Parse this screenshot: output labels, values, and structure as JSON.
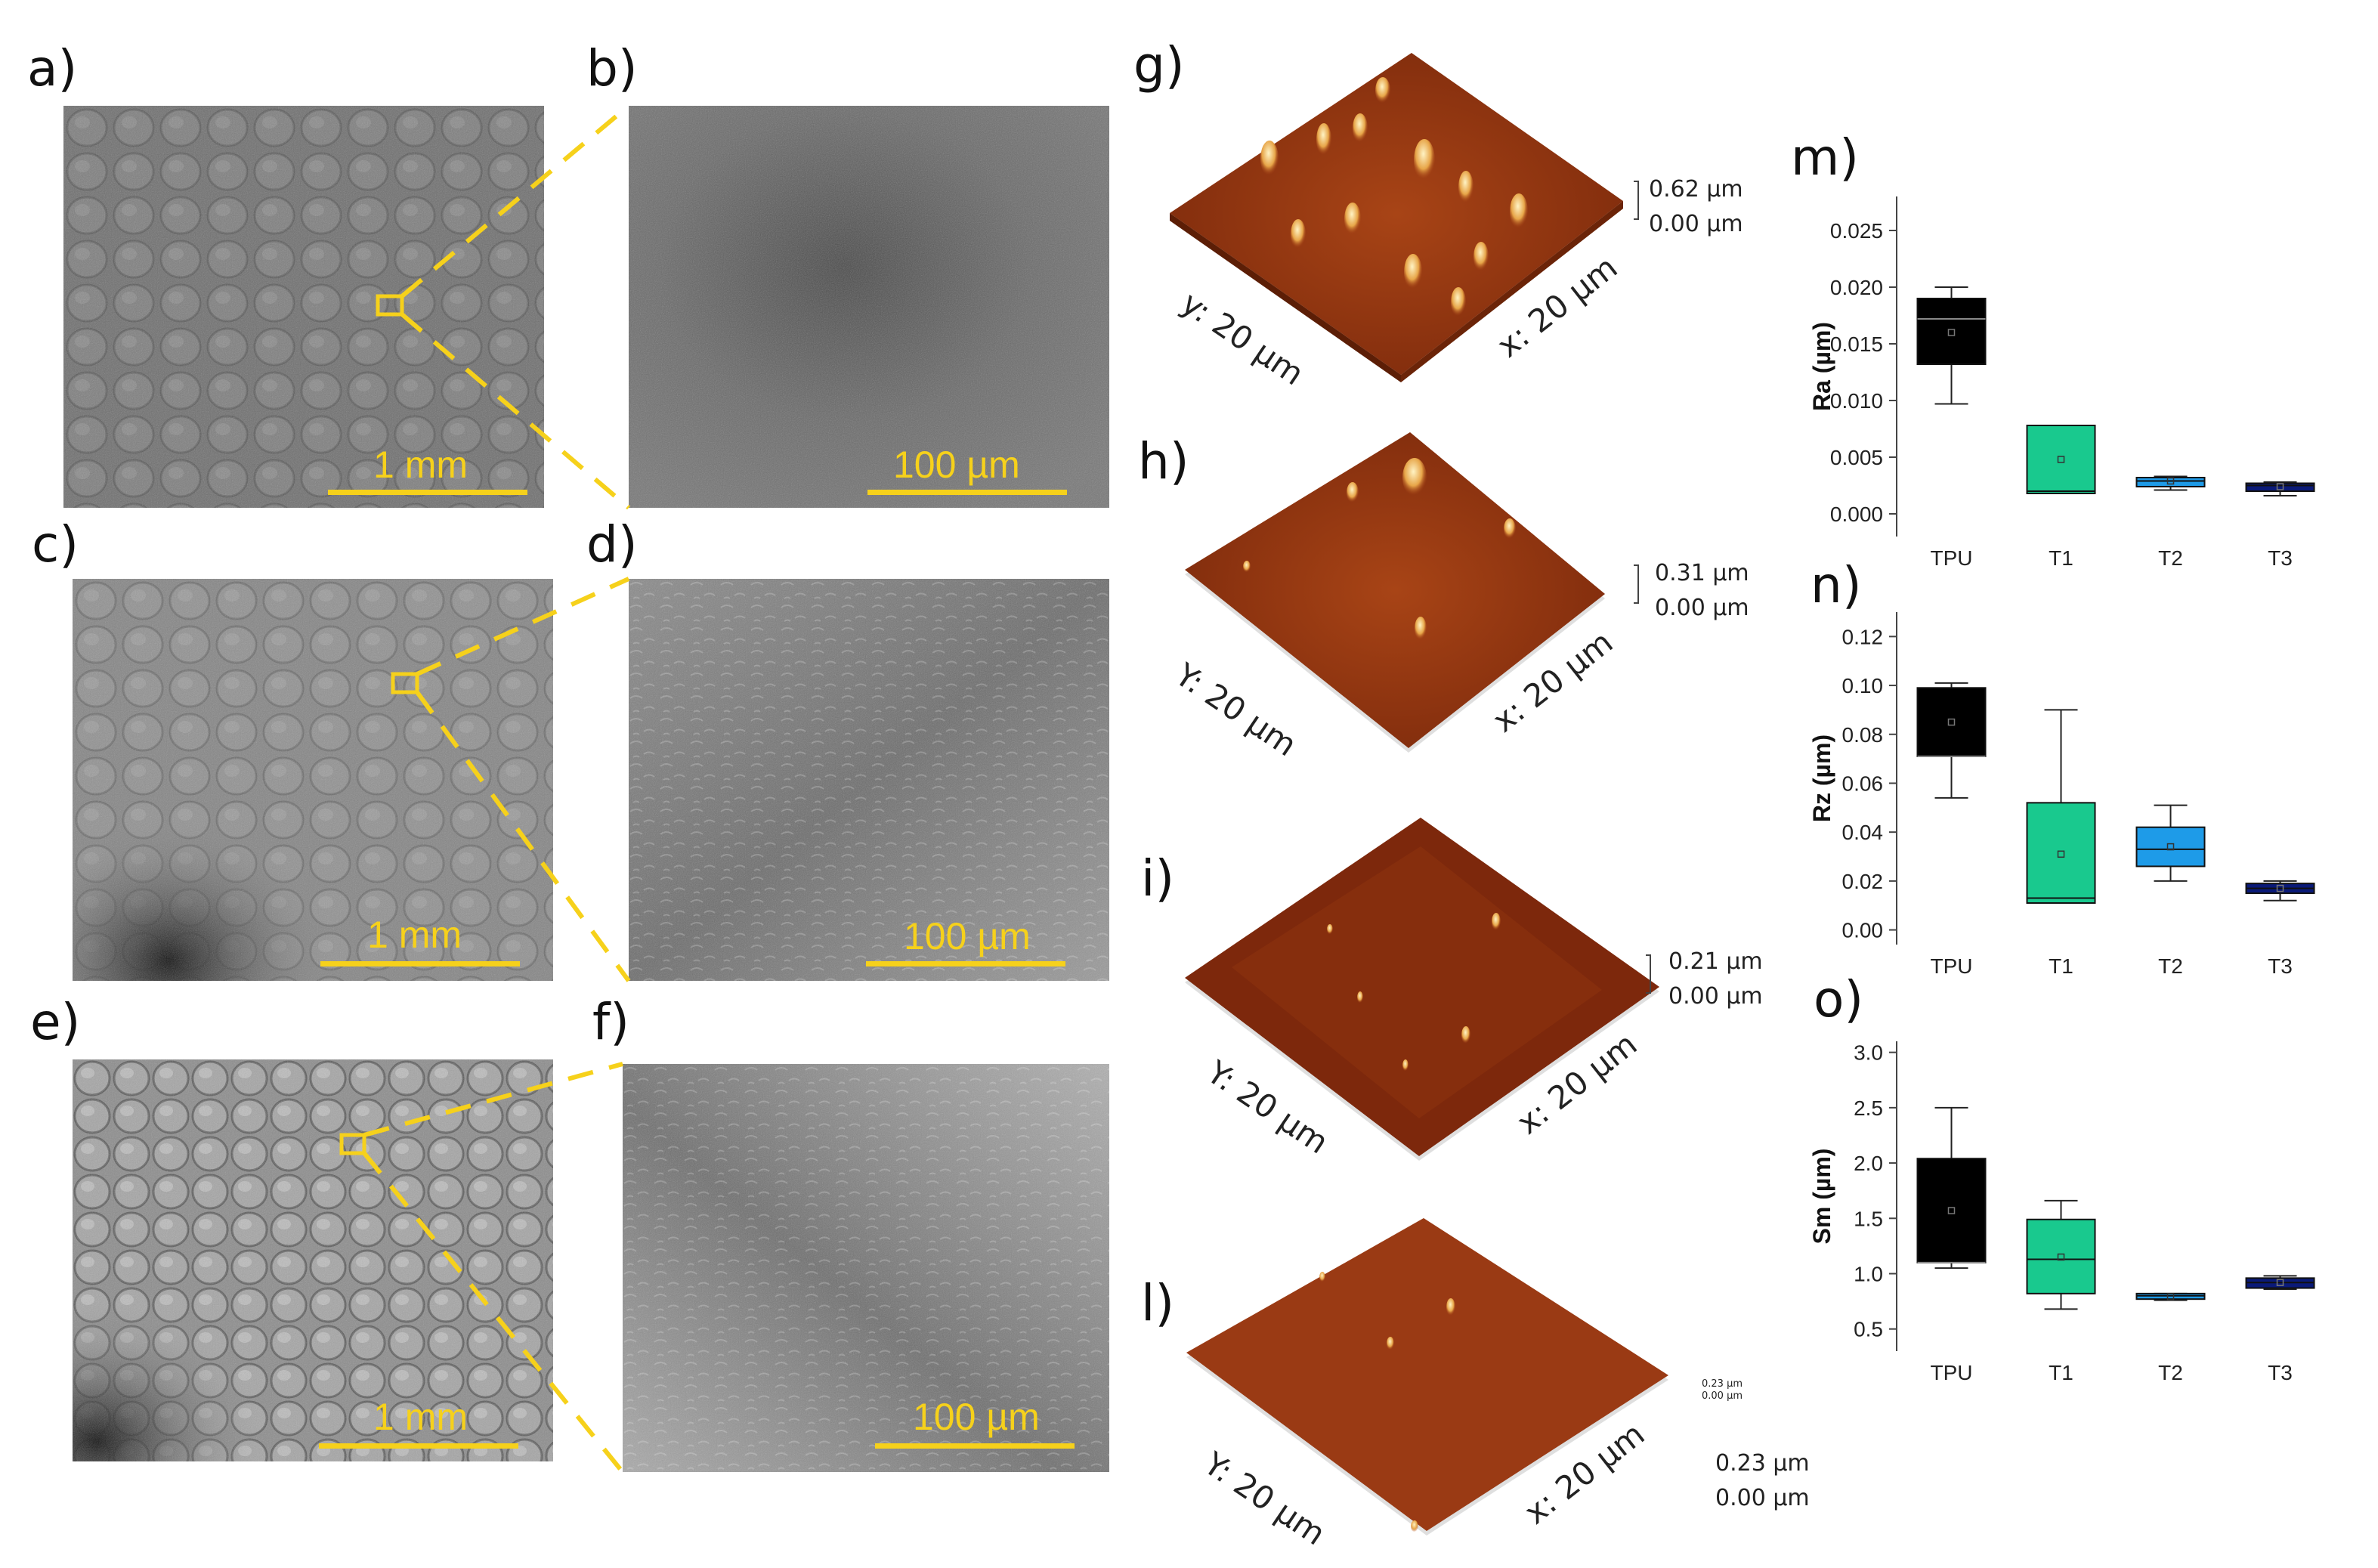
{
  "panel_labels": {
    "a": "a)",
    "b": "b)",
    "c": "c)",
    "d": "d)",
    "e": "e)",
    "f": "f)",
    "g": "g)",
    "h": "h)",
    "i": "i)",
    "l": "l)",
    "m": "m)",
    "n": "n)",
    "o": "o)"
  },
  "sem": {
    "scale_1mm": "1 mm",
    "scale_100um": "100 µm",
    "accent_color": "#f6d11b"
  },
  "afm": {
    "g": {
      "x_axis": "x: 20 µm",
      "y_axis": "y: 20 µm",
      "z_max": "0.62 µm",
      "z_min": "0.00 µm"
    },
    "h": {
      "x_axis": "x: 20 µm",
      "y_axis": "Y: 20 µm",
      "z_max": "0.31 µm",
      "z_min": "0.00 µm"
    },
    "i": {
      "x_axis": "x: 20 µm",
      "y_axis": "Y: 20 µm",
      "z_max": "0.21 µm",
      "z_min": "0.00 µm"
    },
    "l": {
      "x_axis": "x: 20 µm",
      "y_axis": "Y: 20 µm",
      "z_max": "0.23 µm",
      "z_min": "0.00 µm",
      "z_max_small": "0.23 µm",
      "z_min_small": "0.00 µm"
    },
    "surface_color": "#9c3a12"
  },
  "chart_data": [
    {
      "type": "box",
      "panel": "m",
      "ylabel": "Ra (µm)",
      "ylim": [
        -0.002,
        0.028
      ],
      "yticks": [
        0.0,
        0.005,
        0.01,
        0.015,
        0.02,
        0.025
      ],
      "ytick_labels": [
        "0.000",
        "0.005",
        "0.010",
        "0.015",
        "0.020",
        "0.025"
      ],
      "categories": [
        "TPU",
        "T1",
        "T2",
        "T3"
      ],
      "colors": [
        "#000000",
        "#19c98e",
        "#1e9be8",
        "#0a1a78"
      ],
      "boxes": [
        {
          "min": 0.0097,
          "q1": 0.0132,
          "median": 0.0172,
          "q3": 0.019,
          "max": 0.02,
          "mean": 0.016
        },
        {
          "min": 0.0018,
          "q1": 0.0018,
          "median": 0.002,
          "q3": 0.0078,
          "max": 0.0078,
          "mean": 0.0048
        },
        {
          "min": 0.0021,
          "q1": 0.0024,
          "median": 0.0029,
          "q3": 0.0032,
          "max": 0.0033,
          "mean": 0.0029
        },
        {
          "min": 0.0016,
          "q1": 0.002,
          "median": 0.0025,
          "q3": 0.0027,
          "max": 0.0028,
          "mean": 0.0024
        }
      ]
    },
    {
      "type": "box",
      "panel": "n",
      "ylabel": "Rz (µm)",
      "ylim": [
        -0.006,
        0.13
      ],
      "yticks": [
        0.0,
        0.02,
        0.04,
        0.06,
        0.08,
        0.1,
        0.12
      ],
      "ytick_labels": [
        "0.00",
        "0.02",
        "0.04",
        "0.06",
        "0.08",
        "0.10",
        "0.12"
      ],
      "categories": [
        "TPU",
        "T1",
        "T2",
        "T3"
      ],
      "colors": [
        "#000000",
        "#19c98e",
        "#1e9be8",
        "#0a1a78"
      ],
      "boxes": [
        {
          "min": 0.054,
          "q1": 0.071,
          "median": 0.071,
          "q3": 0.099,
          "max": 0.101,
          "mean": 0.085
        },
        {
          "min": 0.011,
          "q1": 0.011,
          "median": 0.013,
          "q3": 0.052,
          "max": 0.09,
          "mean": 0.031
        },
        {
          "min": 0.02,
          "q1": 0.026,
          "median": 0.033,
          "q3": 0.042,
          "max": 0.051,
          "mean": 0.034
        },
        {
          "min": 0.012,
          "q1": 0.015,
          "median": 0.017,
          "q3": 0.019,
          "max": 0.02,
          "mean": 0.017
        }
      ]
    },
    {
      "type": "box",
      "panel": "o",
      "ylabel": "Sm (µm)",
      "ylim": [
        0.3,
        3.1
      ],
      "yticks": [
        0.5,
        1.0,
        1.5,
        2.0,
        2.5,
        3.0
      ],
      "ytick_labels": [
        "0.5",
        "1.0",
        "1.5",
        "2.0",
        "2.5",
        "3.0"
      ],
      "categories": [
        "TPU",
        "T1",
        "T2",
        "T3"
      ],
      "colors": [
        "#000000",
        "#19c98e",
        "#1e9be8",
        "#0a1a78"
      ],
      "boxes": [
        {
          "min": 1.05,
          "q1": 1.1,
          "median": 1.1,
          "q3": 2.04,
          "max": 2.5,
          "mean": 1.57
        },
        {
          "min": 0.68,
          "q1": 0.82,
          "median": 1.13,
          "q3": 1.49,
          "max": 1.66,
          "mean": 1.15
        },
        {
          "min": 0.76,
          "q1": 0.77,
          "median": 0.8,
          "q3": 0.82,
          "max": 0.82,
          "mean": 0.79
        },
        {
          "min": 0.86,
          "q1": 0.87,
          "median": 0.92,
          "q3": 0.96,
          "max": 0.98,
          "mean": 0.92
        }
      ]
    }
  ]
}
